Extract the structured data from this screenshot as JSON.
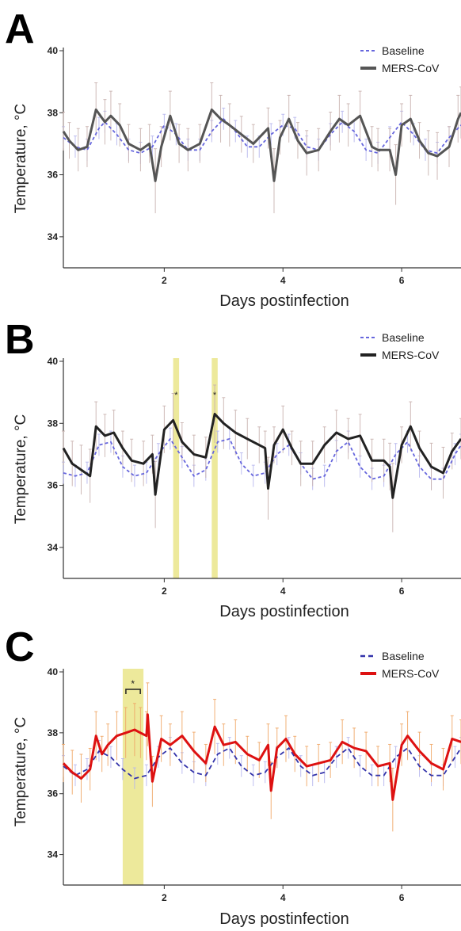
{
  "chart_data": [
    {
      "panel_letter": "A",
      "type": "line",
      "xlabel": "Days postinfection",
      "ylabel": "Temperature, °C",
      "x_ticks": [
        2,
        4,
        6
      ],
      "y_ticks": [
        34,
        36,
        38,
        40
      ],
      "xlim": [
        0.3,
        7.0
      ],
      "ylim": [
        33.0,
        40.0
      ],
      "legend_placement": "top-right",
      "highlight_bands": [],
      "significance_marks": [],
      "series": [
        {
          "name": "Baseline",
          "color": "#6666dd",
          "dashed": true,
          "x": [
            0.3,
            0.5,
            0.7,
            0.9,
            1.0,
            1.2,
            1.4,
            1.6,
            1.8,
            2.0,
            2.2,
            2.4,
            2.6,
            2.8,
            3.0,
            3.2,
            3.4,
            3.6,
            3.8,
            4.0,
            4.2,
            4.4,
            4.6,
            4.8,
            5.0,
            5.2,
            5.4,
            5.6,
            5.8,
            6.0,
            6.2,
            6.4,
            6.6,
            6.8,
            7.0
          ],
          "y": [
            37.2,
            36.9,
            36.8,
            37.5,
            37.7,
            37.3,
            36.8,
            36.7,
            36.9,
            37.6,
            37.3,
            36.8,
            36.8,
            37.4,
            37.8,
            37.4,
            36.9,
            36.9,
            37.3,
            37.6,
            37.5,
            36.9,
            36.8,
            37.3,
            37.7,
            37.4,
            36.8,
            36.7,
            37.2,
            37.7,
            37.3,
            36.8,
            36.7,
            37.2,
            37.6
          ]
        },
        {
          "name": "MERS-CoV",
          "color": "#555555",
          "dashed": false,
          "x": [
            0.3,
            0.4,
            0.55,
            0.7,
            0.85,
            1.0,
            1.1,
            1.25,
            1.4,
            1.6,
            1.75,
            1.85,
            1.95,
            2.1,
            2.25,
            2.4,
            2.6,
            2.8,
            2.95,
            3.1,
            3.3,
            3.5,
            3.75,
            3.85,
            3.95,
            4.1,
            4.25,
            4.4,
            4.6,
            4.8,
            4.95,
            5.1,
            5.3,
            5.5,
            5.6,
            5.8,
            5.9,
            6.0,
            6.15,
            6.3,
            6.45,
            6.6,
            6.8,
            6.95,
            7.0
          ],
          "y": [
            37.4,
            37.1,
            36.8,
            36.9,
            38.1,
            37.7,
            37.9,
            37.6,
            37.0,
            36.8,
            37.0,
            35.8,
            36.9,
            37.9,
            37.0,
            36.8,
            37.0,
            38.1,
            37.8,
            37.6,
            37.3,
            37.0,
            37.5,
            35.8,
            37.2,
            37.8,
            37.1,
            36.7,
            36.8,
            37.4,
            37.8,
            37.6,
            37.9,
            36.9,
            36.8,
            36.8,
            36.0,
            37.6,
            37.8,
            37.1,
            36.7,
            36.6,
            36.9,
            37.8,
            38.0
          ]
        }
      ]
    },
    {
      "panel_letter": "B",
      "type": "line",
      "xlabel": "Days postinfection",
      "ylabel": "Temperature, °C",
      "x_ticks": [
        2,
        4,
        6
      ],
      "y_ticks": [
        34,
        36,
        38,
        40
      ],
      "xlim": [
        0.3,
        7.0
      ],
      "ylim": [
        33.0,
        40.0
      ],
      "legend_placement": "top-right",
      "highlight_bands": [
        [
          2.15,
          2.25
        ],
        [
          2.8,
          2.9
        ]
      ],
      "significance_marks": [
        {
          "x": 2.2,
          "label": "*"
        },
        {
          "x": 2.85,
          "label": "*"
        }
      ],
      "series": [
        {
          "name": "Baseline",
          "color": "#6666dd",
          "dashed": true,
          "x": [
            0.3,
            0.5,
            0.7,
            0.9,
            1.1,
            1.3,
            1.5,
            1.7,
            1.9,
            2.1,
            2.3,
            2.5,
            2.7,
            2.9,
            3.1,
            3.3,
            3.5,
            3.7,
            3.9,
            4.1,
            4.3,
            4.5,
            4.7,
            4.9,
            5.1,
            5.3,
            5.5,
            5.7,
            5.9,
            6.1,
            6.3,
            6.5,
            6.7,
            6.9,
            7.0
          ],
          "y": [
            36.4,
            36.3,
            36.4,
            37.3,
            37.4,
            36.6,
            36.3,
            36.4,
            37.0,
            37.5,
            36.9,
            36.3,
            36.5,
            37.4,
            37.5,
            36.7,
            36.3,
            36.4,
            37.0,
            37.3,
            36.7,
            36.2,
            36.3,
            37.1,
            37.4,
            36.6,
            36.2,
            36.3,
            37.0,
            37.4,
            36.6,
            36.2,
            36.2,
            37.0,
            37.3
          ]
        },
        {
          "name": "MERS-CoV",
          "color": "#222222",
          "dashed": false,
          "x": [
            0.3,
            0.45,
            0.6,
            0.75,
            0.85,
            1.0,
            1.15,
            1.3,
            1.45,
            1.65,
            1.8,
            1.85,
            2.0,
            2.15,
            2.3,
            2.5,
            2.7,
            2.85,
            3.0,
            3.2,
            3.4,
            3.6,
            3.7,
            3.75,
            3.85,
            4.0,
            4.15,
            4.3,
            4.5,
            4.7,
            4.9,
            5.1,
            5.3,
            5.5,
            5.7,
            5.8,
            5.85,
            6.0,
            6.15,
            6.3,
            6.5,
            6.7,
            6.85,
            7.0
          ],
          "y": [
            37.2,
            36.7,
            36.5,
            36.3,
            37.9,
            37.6,
            37.7,
            37.2,
            36.8,
            36.7,
            37.0,
            35.7,
            37.8,
            38.1,
            37.4,
            37.0,
            36.9,
            38.3,
            38.0,
            37.7,
            37.5,
            37.3,
            37.2,
            35.9,
            37.3,
            37.8,
            37.2,
            36.7,
            36.7,
            37.3,
            37.7,
            37.5,
            37.6,
            36.8,
            36.8,
            36.6,
            35.6,
            37.3,
            37.9,
            37.2,
            36.6,
            36.4,
            37.1,
            37.5
          ]
        }
      ]
    },
    {
      "panel_letter": "C",
      "type": "line",
      "xlabel": "Days postinfection",
      "ylabel": "Temperature, °C",
      "x_ticks": [
        2,
        4,
        6
      ],
      "y_ticks": [
        34,
        36,
        38,
        40
      ],
      "xlim": [
        0.3,
        7.0
      ],
      "ylim": [
        33.0,
        40.0
      ],
      "legend_placement": "top-right",
      "highlight_bands": [
        [
          1.3,
          1.65
        ]
      ],
      "significance_marks": [
        {
          "x": 1.47,
          "label": "*",
          "bracket": [
            1.3,
            1.65
          ]
        }
      ],
      "series": [
        {
          "name": "Baseline",
          "color": "#3333aa",
          "dashed": true,
          "x": [
            0.3,
            0.5,
            0.7,
            0.9,
            1.1,
            1.3,
            1.5,
            1.7,
            1.9,
            2.1,
            2.3,
            2.5,
            2.7,
            2.9,
            3.1,
            3.3,
            3.5,
            3.7,
            3.9,
            4.1,
            4.3,
            4.5,
            4.7,
            4.9,
            5.1,
            5.3,
            5.5,
            5.7,
            5.9,
            6.1,
            6.3,
            6.5,
            6.7,
            6.9,
            7.0
          ],
          "y": [
            36.9,
            36.6,
            36.8,
            37.4,
            37.2,
            36.8,
            36.5,
            36.6,
            37.2,
            37.5,
            37.0,
            36.7,
            36.6,
            37.3,
            37.5,
            36.9,
            36.6,
            36.7,
            37.2,
            37.5,
            36.9,
            36.6,
            36.7,
            37.2,
            37.5,
            36.9,
            36.6,
            36.6,
            37.2,
            37.5,
            36.9,
            36.6,
            36.6,
            37.2,
            37.5
          ]
        },
        {
          "name": "MERS-CoV",
          "color": "#dd1111",
          "dashed": false,
          "x": [
            0.3,
            0.45,
            0.6,
            0.75,
            0.85,
            0.95,
            1.05,
            1.2,
            1.35,
            1.5,
            1.6,
            1.7,
            1.72,
            1.8,
            1.95,
            2.1,
            2.3,
            2.5,
            2.7,
            2.85,
            3.0,
            3.2,
            3.4,
            3.6,
            3.75,
            3.8,
            3.9,
            4.05,
            4.2,
            4.4,
            4.6,
            4.8,
            5.0,
            5.2,
            5.4,
            5.6,
            5.8,
            5.85,
            6.0,
            6.1,
            6.3,
            6.5,
            6.7,
            6.85,
            7.0
          ],
          "y": [
            37.0,
            36.7,
            36.5,
            36.8,
            37.9,
            37.3,
            37.6,
            37.9,
            38.0,
            38.1,
            38.0,
            37.9,
            38.6,
            36.4,
            37.8,
            37.6,
            37.9,
            37.4,
            37.0,
            38.2,
            37.6,
            37.7,
            37.3,
            37.1,
            37.6,
            36.1,
            37.5,
            37.8,
            37.3,
            36.9,
            37.0,
            37.1,
            37.7,
            37.5,
            37.4,
            36.9,
            37.0,
            35.8,
            37.6,
            37.9,
            37.4,
            37.0,
            36.8,
            37.8,
            37.7
          ]
        }
      ]
    }
  ]
}
